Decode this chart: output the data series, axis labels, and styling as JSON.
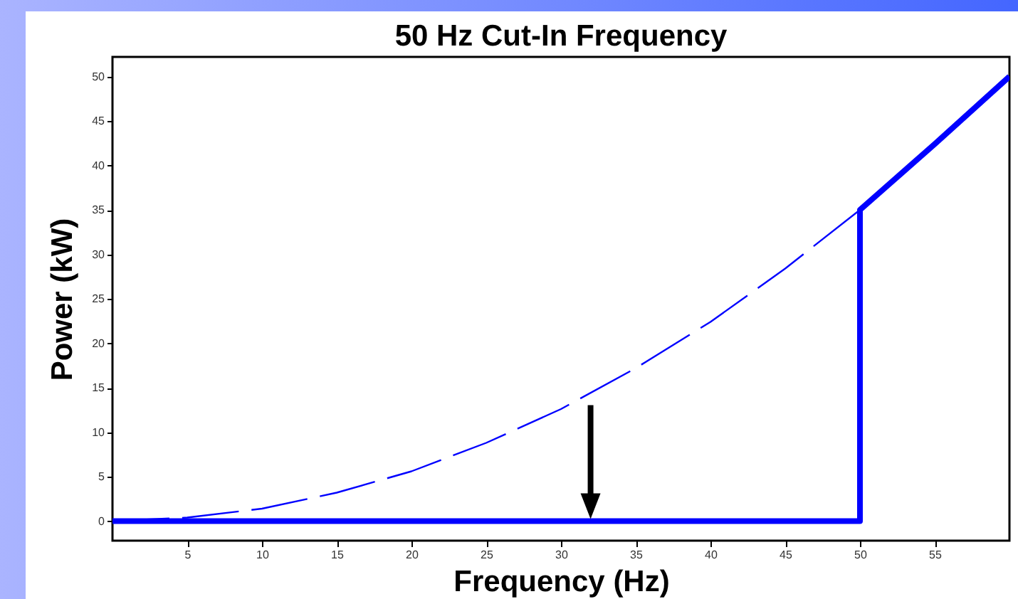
{
  "chart_data": {
    "type": "line",
    "title": "50 Hz Cut-In Frequency",
    "xlabel": "Frequency (Hz)",
    "ylabel": "Power (kW)",
    "xlim": [
      0,
      60
    ],
    "ylim": [
      -2.2,
      52.2
    ],
    "xticks": [
      5,
      10,
      15,
      20,
      25,
      30,
      35,
      40,
      45,
      50,
      55
    ],
    "yticks": [
      0,
      5,
      10,
      15,
      20,
      25,
      30,
      35,
      40,
      45,
      50
    ],
    "grid": false,
    "series": [
      {
        "color": "#0000ff",
        "line_style": "dashed",
        "x": [
          0,
          5,
          10,
          15,
          20,
          25,
          30,
          35,
          40,
          45,
          50
        ],
        "values": [
          0,
          0.4,
          1.4,
          3.2,
          5.6,
          8.8,
          12.6,
          17.2,
          22.4,
          28.4,
          35
        ]
      },
      {
        "color": "#0000ff",
        "line_style": "solid",
        "x": [
          0,
          50,
          50,
          55,
          60
        ],
        "values": [
          0,
          0,
          35,
          42.4,
          50
        ]
      }
    ]
  }
}
